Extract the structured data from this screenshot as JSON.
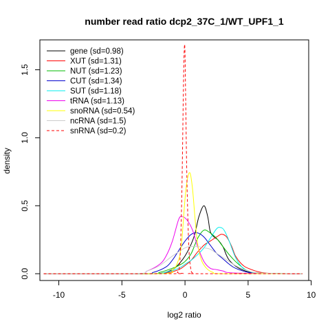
{
  "chart_data": {
    "type": "line",
    "title": "number read ratio dcp2_37C_1/WT_UPF1_1",
    "xlabel": "log2 ratio",
    "ylabel": "density",
    "xlim": [
      -11.5,
      9.8
    ],
    "ylim": [
      -0.05,
      1.72
    ],
    "x_ticks": [
      -10,
      -5,
      0,
      5,
      10
    ],
    "y_ticks": [
      0.0,
      0.5,
      1.0,
      1.5
    ],
    "x_tick_labels": [
      "-10",
      "-5",
      "0",
      "5",
      "10"
    ],
    "y_tick_labels": [
      "0.0",
      "0.5",
      "1.0",
      "1.5"
    ],
    "legend_position": "top-left",
    "grid": false,
    "series": [
      {
        "name": "gene (sd=0.98)",
        "color": "#000000",
        "dash": "solid",
        "x": [
          -11.2,
          -4,
          -2,
          -1,
          -0.5,
          0,
          0.5,
          0.8,
          1.1,
          1.5,
          1.8,
          2.0,
          2.3,
          2.6,
          3.0,
          3.5,
          4.5,
          6,
          9.3
        ],
        "y": [
          0,
          0,
          0.002,
          0.03,
          0.07,
          0.13,
          0.22,
          0.3,
          0.42,
          0.5,
          0.42,
          0.31,
          0.27,
          0.25,
          0.2,
          0.1,
          0.03,
          0.002,
          0
        ]
      },
      {
        "name": "XUT (sd=1.31)",
        "color": "#ff0000",
        "dash": "solid",
        "x": [
          -11.2,
          -3,
          -1.5,
          -0.5,
          0,
          0.5,
          1.0,
          1.5,
          2.0,
          2.5,
          2.9,
          3.3,
          3.7,
          4.0,
          4.5,
          5,
          6,
          7,
          9.3
        ],
        "y": [
          0,
          0,
          0.005,
          0.03,
          0.06,
          0.1,
          0.16,
          0.21,
          0.24,
          0.27,
          0.29,
          0.27,
          0.2,
          0.13,
          0.07,
          0.04,
          0.01,
          0.002,
          0
        ]
      },
      {
        "name": "NUT (sd=1.23)",
        "color": "#00bb00",
        "dash": "solid",
        "x": [
          -11.2,
          -3,
          -2,
          -1,
          -0.5,
          0,
          0.5,
          1.0,
          1.5,
          2.0,
          2.5,
          3.0,
          3.5,
          4.0,
          4.5,
          5,
          6,
          9.3
        ],
        "y": [
          0,
          0,
          0.01,
          0.04,
          0.06,
          0.09,
          0.15,
          0.26,
          0.32,
          0.3,
          0.26,
          0.2,
          0.14,
          0.09,
          0.05,
          0.02,
          0.005,
          0
        ]
      },
      {
        "name": "CUT (sd=1.34)",
        "color": "#0000cc",
        "dash": "solid",
        "x": [
          -11.2,
          -3.5,
          -2.5,
          -1.5,
          -1.0,
          -0.5,
          0,
          0.5,
          1.0,
          1.5,
          2.0,
          2.5,
          3.0,
          3.5,
          4.0,
          5,
          6,
          9.3
        ],
        "y": [
          0,
          0,
          0.01,
          0.05,
          0.1,
          0.17,
          0.24,
          0.29,
          0.3,
          0.27,
          0.21,
          0.15,
          0.11,
          0.07,
          0.04,
          0.01,
          0.002,
          0
        ]
      },
      {
        "name": "SUT (sd=1.18)",
        "color": "#00eeee",
        "dash": "solid",
        "x": [
          -11.2,
          -3,
          -1.5,
          -0.5,
          0,
          0.5,
          1.0,
          1.5,
          2.0,
          2.5,
          2.8,
          3.1,
          3.5,
          4.0,
          4.5,
          5,
          6,
          9.3
        ],
        "y": [
          0,
          0,
          0.01,
          0.04,
          0.07,
          0.1,
          0.14,
          0.19,
          0.26,
          0.33,
          0.34,
          0.32,
          0.24,
          0.12,
          0.05,
          0.02,
          0.003,
          0
        ]
      },
      {
        "name": "tRNA (sd=1.13)",
        "color": "#ee00ee",
        "dash": "solid",
        "x": [
          -11.2,
          -4,
          -3,
          -2,
          -1.5,
          -1.0,
          -0.5,
          -0.2,
          0.2,
          0.6,
          1.0,
          1.5,
          2.0,
          2.5,
          3.0,
          4,
          9.3
        ],
        "y": [
          0,
          0,
          0.02,
          0.07,
          0.13,
          0.24,
          0.4,
          0.42,
          0.39,
          0.32,
          0.2,
          0.09,
          0.04,
          0.03,
          0.02,
          0.005,
          0
        ]
      },
      {
        "name": "snoRNA (sd=0.54)",
        "color": "#ffff00",
        "dash": "solid",
        "x": [
          -11.2,
          -2,
          -1,
          -0.6,
          -0.3,
          0,
          0.2,
          0.4,
          0.6,
          0.8,
          1.0,
          1.3,
          1.7,
          2.2,
          3,
          9.3
        ],
        "y": [
          0,
          0,
          0.03,
          0.08,
          0.2,
          0.55,
          0.7,
          0.74,
          0.62,
          0.4,
          0.22,
          0.1,
          0.04,
          0.01,
          0,
          0
        ]
      },
      {
        "name": "ncRNA (sd=1.5)",
        "color": "#cccccc",
        "dash": "solid",
        "x": [
          -11.2,
          -4,
          -3,
          -2,
          -1,
          0,
          0.5,
          1.0,
          1.5,
          2.0,
          2.5,
          3.0,
          4.0,
          5,
          6,
          9.3
        ],
        "y": [
          0,
          0,
          0.02,
          0.06,
          0.13,
          0.19,
          0.2,
          0.2,
          0.19,
          0.18,
          0.15,
          0.12,
          0.06,
          0.02,
          0.005,
          0
        ]
      },
      {
        "name": "snRNA (sd=0.2)",
        "color": "#ff0000",
        "dash": "dashed",
        "x": [
          -11.2,
          -1.0,
          -0.6,
          -0.4,
          -0.25,
          -0.12,
          -0.05,
          0.0,
          0.05,
          0.15,
          0.3,
          0.45,
          0.6,
          1.0,
          9.3
        ],
        "y": [
          0,
          0,
          0.01,
          0.1,
          0.6,
          1.4,
          1.67,
          1.62,
          1.3,
          0.7,
          0.2,
          0.04,
          0.005,
          0,
          0
        ]
      }
    ]
  }
}
